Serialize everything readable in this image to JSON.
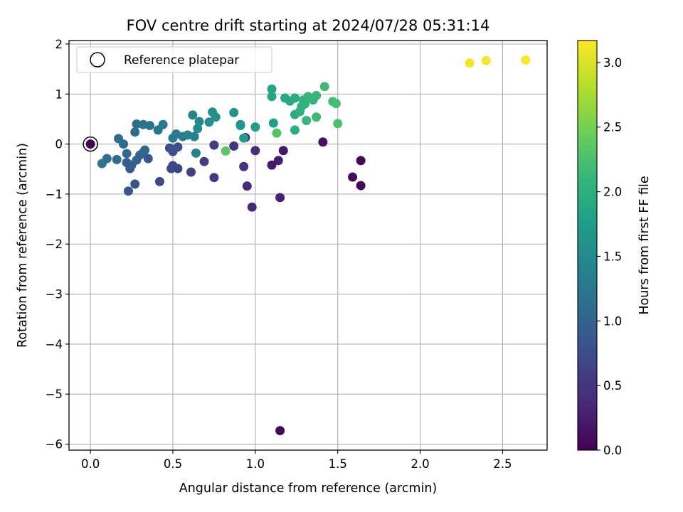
{
  "chart_data": {
    "type": "scatter",
    "title": "FOV centre drift starting at 2024/07/28 05:31:14",
    "xlabel": "Angular distance from reference (arcmin)",
    "ylabel": "Rotation from reference (arcmin)",
    "xlim": [
      -0.13,
      2.77
    ],
    "ylim": [
      -6.12,
      2.07
    ],
    "xticks": [
      0.0,
      0.5,
      1.0,
      1.5,
      2.0,
      2.5
    ],
    "xtick_labels": [
      "0.0",
      "0.5",
      "1.0",
      "1.5",
      "2.0",
      "2.5"
    ],
    "yticks": [
      -6,
      -5,
      -4,
      -3,
      -2,
      -1,
      0,
      1,
      2
    ],
    "ytick_labels": [
      "−6",
      "−5",
      "−4",
      "−3",
      "−2",
      "−1",
      "0",
      "1",
      "2"
    ],
    "grid": true,
    "legend": {
      "placement": "upper-left",
      "entries": [
        "Reference platepar"
      ]
    },
    "reference_point": {
      "x": 0.0,
      "y": 0.0
    },
    "colorbar": {
      "label": "Hours from first FF file",
      "range": [
        0.0,
        3.17
      ],
      "ticks": [
        0.0,
        0.5,
        1.0,
        1.5,
        2.0,
        2.5,
        3.0
      ],
      "tick_labels": [
        "0.0",
        "0.5",
        "1.0",
        "1.5",
        "2.0",
        "2.5",
        "3.0"
      ],
      "colormap": "viridis"
    },
    "colormap_stops": [
      "#440154",
      "#482878",
      "#3e4989",
      "#31688e",
      "#26828e",
      "#1f9e89",
      "#35b779",
      "#6ece58",
      "#b5de2b",
      "#fde725"
    ],
    "points": [
      {
        "x": 0.0,
        "y": 0.0,
        "t": 0.02
      },
      {
        "x": 1.15,
        "y": -5.73,
        "t": 0.05
      },
      {
        "x": 1.64,
        "y": -0.33,
        "t": 0.05
      },
      {
        "x": 1.64,
        "y": -0.83,
        "t": 0.07
      },
      {
        "x": 1.59,
        "y": -0.66,
        "t": 0.1
      },
      {
        "x": 1.41,
        "y": 0.04,
        "t": 0.15
      },
      {
        "x": 1.17,
        "y": -0.13,
        "t": 0.2
      },
      {
        "x": 1.14,
        "y": -0.33,
        "t": 0.25
      },
      {
        "x": 1.1,
        "y": -0.42,
        "t": 0.22
      },
      {
        "x": 1.15,
        "y": -1.07,
        "t": 0.3
      },
      {
        "x": 0.98,
        "y": -1.26,
        "t": 0.35
      },
      {
        "x": 0.95,
        "y": -0.84,
        "t": 0.38
      },
      {
        "x": 1.0,
        "y": -0.13,
        "t": 0.4
      },
      {
        "x": 0.94,
        "y": 0.13,
        "t": 0.42
      },
      {
        "x": 0.93,
        "y": -0.45,
        "t": 0.45
      },
      {
        "x": 0.87,
        "y": -0.04,
        "t": 0.48
      },
      {
        "x": 0.75,
        "y": -0.67,
        "t": 0.52
      },
      {
        "x": 0.75,
        "y": -0.02,
        "t": 0.55
      },
      {
        "x": 0.69,
        "y": -0.35,
        "t": 0.58
      },
      {
        "x": 0.61,
        "y": -0.56,
        "t": 0.62
      },
      {
        "x": 0.53,
        "y": -0.49,
        "t": 0.65
      },
      {
        "x": 0.49,
        "y": -0.49,
        "t": 0.68
      },
      {
        "x": 0.5,
        "y": -0.43,
        "t": 0.7
      },
      {
        "x": 0.42,
        "y": -0.75,
        "t": 0.72
      },
      {
        "x": 0.48,
        "y": -0.08,
        "t": 0.75
      },
      {
        "x": 0.5,
        "y": -0.15,
        "t": 0.78
      },
      {
        "x": 0.53,
        "y": -0.06,
        "t": 0.8
      },
      {
        "x": 0.35,
        "y": -0.29,
        "t": 0.82
      },
      {
        "x": 0.27,
        "y": -0.8,
        "t": 0.85
      },
      {
        "x": 0.23,
        "y": -0.94,
        "t": 0.88
      },
      {
        "x": 0.24,
        "y": -0.49,
        "t": 0.9
      },
      {
        "x": 0.22,
        "y": -0.37,
        "t": 0.92
      },
      {
        "x": 0.25,
        "y": -0.42,
        "t": 0.95
      },
      {
        "x": 0.28,
        "y": -0.32,
        "t": 0.98
      },
      {
        "x": 0.32,
        "y": -0.17,
        "t": 1.0
      },
      {
        "x": 0.3,
        "y": -0.22,
        "t": 1.02
      },
      {
        "x": 0.33,
        "y": -0.12,
        "t": 1.05
      },
      {
        "x": 0.22,
        "y": -0.19,
        "t": 1.08
      },
      {
        "x": 0.2,
        "y": 0.0,
        "t": 1.1
      },
      {
        "x": 0.17,
        "y": 0.11,
        "t": 1.12
      },
      {
        "x": 0.16,
        "y": -0.31,
        "t": 1.15
      },
      {
        "x": 0.1,
        "y": -0.29,
        "t": 1.18
      },
      {
        "x": 0.07,
        "y": -0.39,
        "t": 1.2
      },
      {
        "x": 0.27,
        "y": 0.24,
        "t": 1.1
      },
      {
        "x": 0.28,
        "y": 0.4,
        "t": 1.15
      },
      {
        "x": 0.32,
        "y": 0.39,
        "t": 1.2
      },
      {
        "x": 0.36,
        "y": 0.37,
        "t": 1.22
      },
      {
        "x": 0.41,
        "y": 0.28,
        "t": 1.25
      },
      {
        "x": 0.44,
        "y": 0.39,
        "t": 1.28
      },
      {
        "x": 0.5,
        "y": 0.12,
        "t": 1.3
      },
      {
        "x": 0.52,
        "y": 0.2,
        "t": 1.32
      },
      {
        "x": 0.56,
        "y": 0.15,
        "t": 1.35
      },
      {
        "x": 0.59,
        "y": 0.18,
        "t": 1.38
      },
      {
        "x": 0.63,
        "y": 0.15,
        "t": 1.4
      },
      {
        "x": 0.64,
        "y": -0.18,
        "t": 1.42
      },
      {
        "x": 0.62,
        "y": 0.58,
        "t": 1.45
      },
      {
        "x": 0.66,
        "y": 0.45,
        "t": 1.48
      },
      {
        "x": 0.65,
        "y": 0.31,
        "t": 1.5
      },
      {
        "x": 0.72,
        "y": 0.44,
        "t": 1.55
      },
      {
        "x": 0.74,
        "y": 0.64,
        "t": 1.6
      },
      {
        "x": 0.76,
        "y": 0.54,
        "t": 1.62
      },
      {
        "x": 0.87,
        "y": 0.63,
        "t": 1.65
      },
      {
        "x": 0.91,
        "y": 0.39,
        "t": 1.68
      },
      {
        "x": 0.91,
        "y": 0.37,
        "t": 1.7
      },
      {
        "x": 0.93,
        "y": 0.12,
        "t": 1.72
      },
      {
        "x": 1.0,
        "y": 0.34,
        "t": 1.75
      },
      {
        "x": 1.11,
        "y": 0.42,
        "t": 1.78
      },
      {
        "x": 1.1,
        "y": 1.1,
        "t": 1.85
      },
      {
        "x": 1.1,
        "y": 0.95,
        "t": 1.88
      },
      {
        "x": 1.18,
        "y": 0.92,
        "t": 1.9
      },
      {
        "x": 1.21,
        "y": 0.86,
        "t": 1.92
      },
      {
        "x": 1.24,
        "y": 0.92,
        "t": 1.95
      },
      {
        "x": 1.24,
        "y": 0.59,
        "t": 1.95
      },
      {
        "x": 1.24,
        "y": 0.28,
        "t": 1.98
      },
      {
        "x": 1.27,
        "y": 0.65,
        "t": 2.0
      },
      {
        "x": 1.28,
        "y": 0.75,
        "t": 2.02
      },
      {
        "x": 1.29,
        "y": 0.88,
        "t": 2.05
      },
      {
        "x": 1.3,
        "y": 0.8,
        "t": 2.05
      },
      {
        "x": 1.32,
        "y": 0.95,
        "t": 2.08
      },
      {
        "x": 1.35,
        "y": 0.88,
        "t": 2.1
      },
      {
        "x": 1.37,
        "y": 0.97,
        "t": 2.12
      },
      {
        "x": 1.31,
        "y": 0.47,
        "t": 2.12
      },
      {
        "x": 1.37,
        "y": 0.54,
        "t": 2.15
      },
      {
        "x": 1.42,
        "y": 1.15,
        "t": 2.18
      },
      {
        "x": 1.47,
        "y": 0.85,
        "t": 2.2
      },
      {
        "x": 1.49,
        "y": 0.81,
        "t": 2.22
      },
      {
        "x": 1.5,
        "y": 0.41,
        "t": 2.25
      },
      {
        "x": 1.13,
        "y": 0.22,
        "t": 2.3
      },
      {
        "x": 0.82,
        "y": -0.14,
        "t": 2.35
      },
      {
        "x": 2.3,
        "y": 1.62,
        "t": 3.12
      },
      {
        "x": 2.4,
        "y": 1.67,
        "t": 3.14
      },
      {
        "x": 2.64,
        "y": 1.68,
        "t": 3.16
      }
    ]
  }
}
